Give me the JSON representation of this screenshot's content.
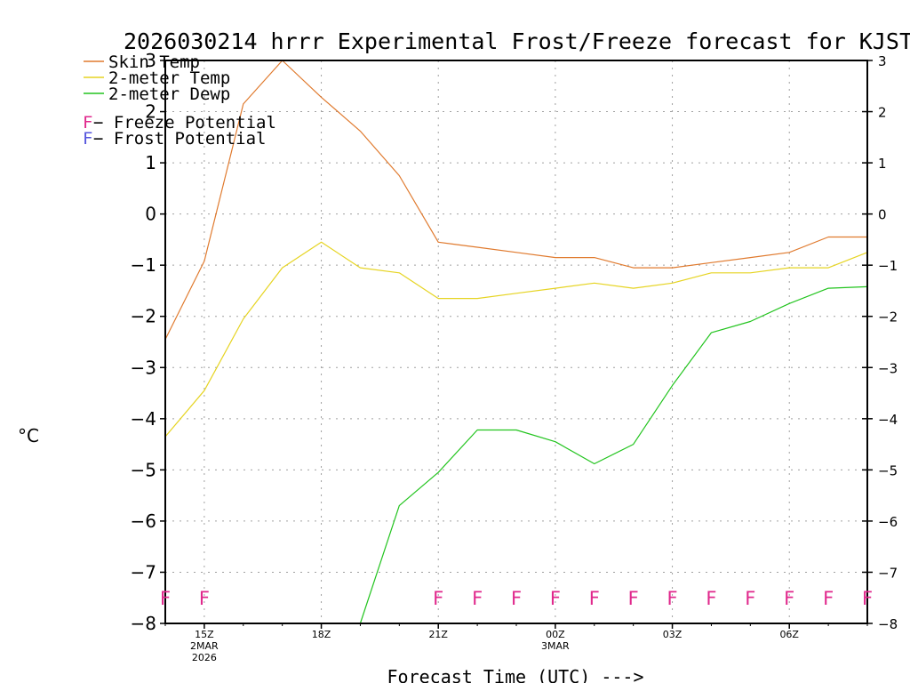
{
  "chart_data": {
    "type": "line",
    "title": "2026030214 hrrr Experimental Frost/Freeze forecast for KJST",
    "xlabel": "Forecast Time (UTC) --->",
    "ylabel": "°C",
    "ylim": [
      -8,
      3
    ],
    "yticks": [
      3,
      2,
      1,
      0,
      -1,
      -2,
      -3,
      -4,
      -5,
      -6,
      -7,
      -8
    ],
    "yticks_left_labels": [
      "3",
      "2",
      "1",
      "0",
      "−1",
      "−2",
      "−3",
      "−4",
      "−5",
      "−6",
      "−7",
      "−8"
    ],
    "yticks_right_labels": [
      "3",
      "2",
      "1",
      "0",
      "−1",
      "−2",
      "−3",
      "−4",
      "−5",
      "−6",
      "−7",
      "−8"
    ],
    "x_hours": [
      14,
      15,
      16,
      17,
      18,
      19,
      20,
      21,
      22,
      23,
      24,
      25,
      26,
      27,
      28,
      29,
      30,
      31,
      32
    ],
    "xlim": [
      14,
      32
    ],
    "xticks": [
      {
        "hour": 15,
        "lines": [
          "15Z",
          "2MAR",
          "2026"
        ]
      },
      {
        "hour": 18,
        "lines": [
          "18Z"
        ]
      },
      {
        "hour": 21,
        "lines": [
          "21Z"
        ]
      },
      {
        "hour": 24,
        "lines": [
          "00Z",
          "3MAR"
        ]
      },
      {
        "hour": 27,
        "lines": [
          "03Z"
        ]
      },
      {
        "hour": 30,
        "lines": [
          "06Z"
        ]
      }
    ],
    "series": [
      {
        "name": "Skin Temp",
        "color": "#e07a2e",
        "values": [
          -2.45,
          -0.92,
          2.15,
          3.0,
          2.28,
          1.62,
          0.75,
          -0.55,
          -0.65,
          -0.75,
          -0.85,
          -0.85,
          -1.05,
          -1.05,
          -0.95,
          -0.85,
          -0.75,
          -0.45,
          -0.45
        ]
      },
      {
        "name": "2-meter Temp",
        "color": "#e6d422",
        "values": [
          -4.35,
          -3.45,
          -2.05,
          -1.05,
          -0.55,
          -1.05,
          -1.15,
          -1.65,
          -1.65,
          -1.55,
          -1.45,
          -1.35,
          -1.45,
          -1.35,
          -1.15,
          -1.15,
          -1.05,
          -1.05,
          -0.75
        ]
      },
      {
        "name": "2-meter Dewp",
        "color": "#22c41e",
        "values": [
          null,
          null,
          null,
          null,
          null,
          -8.0,
          -5.7,
          -5.05,
          -4.22,
          -4.22,
          -4.45,
          -4.88,
          -4.5,
          -3.35,
          -2.32,
          -2.1,
          -1.75,
          -1.45,
          -1.42
        ]
      }
    ],
    "legend": {
      "placement": "top-left",
      "entries": [
        {
          "label": "Skin Temp",
          "color": "#e07a2e"
        },
        {
          "label": "2-meter Temp",
          "color": "#e6d422"
        },
        {
          "label": "2-meter Dewp",
          "color": "#22c41e"
        }
      ],
      "potentials": [
        {
          "mark": "F",
          "label": " − Freeze Potential",
          "color": "#e0288c"
        },
        {
          "mark": "F",
          "label": " − Frost Potential",
          "color": "#5555dd"
        }
      ]
    },
    "freeze_marks": {
      "symbol": "F",
      "color": "#e0288c",
      "hours": [
        14,
        15,
        21,
        22,
        23,
        24,
        25,
        26,
        27,
        28,
        29,
        30,
        31,
        32
      ]
    },
    "grid": true
  }
}
